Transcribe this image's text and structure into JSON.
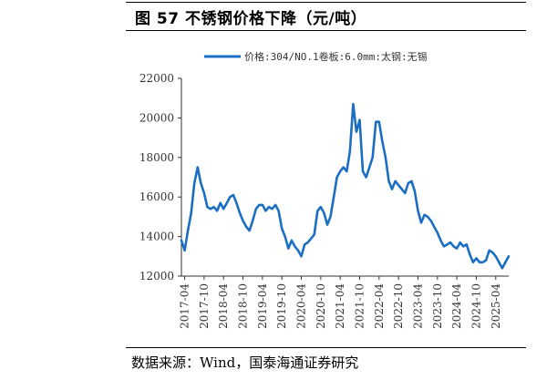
{
  "figure": {
    "title": "图 57  不锈钢价格下降（元/吨）",
    "source": "数据来源：Wind，国泰海通证券研究"
  },
  "chart_data": {
    "type": "line",
    "title": "图 57  不锈钢价格下降（元/吨）",
    "xlabel": "",
    "ylabel": "元/吨",
    "ylim": [
      12000,
      22000
    ],
    "y_ticks": [
      "12000",
      "14000",
      "16000",
      "18000",
      "20000",
      "22000"
    ],
    "x_ticks": [
      "2017-04",
      "2017-10",
      "2018-04",
      "2018-10",
      "2019-04",
      "2019-10",
      "2020-04",
      "2020-10",
      "2021-04",
      "2021-10",
      "2022-04",
      "2022-10",
      "2023-04",
      "2023-10",
      "2024-04",
      "2024-10",
      "2025-04"
    ],
    "x_range": [
      "2017-03",
      "2025-08"
    ],
    "grid": false,
    "legend_position": "top",
    "series": [
      {
        "name": "价格:304/NO.1卷板:6.0mm:太钢:无锡",
        "color": "#1b6ec2",
        "points": [
          [
            "2017-03",
            13800
          ],
          [
            "2017-04",
            13300
          ],
          [
            "2017-05",
            14300
          ],
          [
            "2017-06",
            15200
          ],
          [
            "2017-07",
            16700
          ],
          [
            "2017-08",
            17500
          ],
          [
            "2017-09",
            16700
          ],
          [
            "2017-10",
            16200
          ],
          [
            "2017-11",
            15500
          ],
          [
            "2017-12",
            15400
          ],
          [
            "2018-01",
            15500
          ],
          [
            "2018-02",
            15300
          ],
          [
            "2018-03",
            15700
          ],
          [
            "2018-04",
            15400
          ],
          [
            "2018-05",
            15700
          ],
          [
            "2018-06",
            16000
          ],
          [
            "2018-07",
            16100
          ],
          [
            "2018-08",
            15700
          ],
          [
            "2018-09",
            15200
          ],
          [
            "2018-10",
            14800
          ],
          [
            "2018-11",
            14500
          ],
          [
            "2018-12",
            14300
          ],
          [
            "2019-01",
            14800
          ],
          [
            "2019-02",
            15400
          ],
          [
            "2019-03",
            15600
          ],
          [
            "2019-04",
            15600
          ],
          [
            "2019-05",
            15300
          ],
          [
            "2019-06",
            15500
          ],
          [
            "2019-07",
            15400
          ],
          [
            "2019-08",
            15600
          ],
          [
            "2019-09",
            15300
          ],
          [
            "2019-10",
            14400
          ],
          [
            "2019-11",
            14000
          ],
          [
            "2019-12",
            13400
          ],
          [
            "2020-01",
            13800
          ],
          [
            "2020-02",
            13500
          ],
          [
            "2020-03",
            13300
          ],
          [
            "2020-04",
            13000
          ],
          [
            "2020-05",
            13600
          ],
          [
            "2020-06",
            13700
          ],
          [
            "2020-07",
            13900
          ],
          [
            "2020-08",
            14100
          ],
          [
            "2020-09",
            15300
          ],
          [
            "2020-10",
            15500
          ],
          [
            "2020-11",
            15200
          ],
          [
            "2020-12",
            14600
          ],
          [
            "2021-01",
            15000
          ],
          [
            "2021-02",
            16000
          ],
          [
            "2021-03",
            17000
          ],
          [
            "2021-04",
            17300
          ],
          [
            "2021-05",
            17500
          ],
          [
            "2021-06",
            17300
          ],
          [
            "2021-07",
            18300
          ],
          [
            "2021-08",
            20700
          ],
          [
            "2021-09",
            19300
          ],
          [
            "2021-10",
            19900
          ],
          [
            "2021-11",
            17300
          ],
          [
            "2021-12",
            17000
          ],
          [
            "2022-01",
            17500
          ],
          [
            "2022-02",
            18000
          ],
          [
            "2022-03",
            19800
          ],
          [
            "2022-04",
            19800
          ],
          [
            "2022-05",
            18800
          ],
          [
            "2022-06",
            18000
          ],
          [
            "2022-07",
            16800
          ],
          [
            "2022-08",
            16400
          ],
          [
            "2022-09",
            16800
          ],
          [
            "2022-10",
            16600
          ],
          [
            "2022-11",
            16400
          ],
          [
            "2022-12",
            16200
          ],
          [
            "2023-01",
            16700
          ],
          [
            "2023-02",
            16800
          ],
          [
            "2023-03",
            16300
          ],
          [
            "2023-04",
            15300
          ],
          [
            "2023-05",
            14700
          ],
          [
            "2023-06",
            15100
          ],
          [
            "2023-07",
            15000
          ],
          [
            "2023-08",
            14800
          ],
          [
            "2023-09",
            14500
          ],
          [
            "2023-10",
            14200
          ],
          [
            "2023-11",
            13800
          ],
          [
            "2023-12",
            13500
          ],
          [
            "2024-01",
            13600
          ],
          [
            "2024-02",
            13700
          ],
          [
            "2024-03",
            13500
          ],
          [
            "2024-04",
            13400
          ],
          [
            "2024-05",
            13700
          ],
          [
            "2024-06",
            13500
          ],
          [
            "2024-07",
            13600
          ],
          [
            "2024-08",
            13100
          ],
          [
            "2024-09",
            12700
          ],
          [
            "2024-10",
            12900
          ],
          [
            "2024-11",
            12700
          ],
          [
            "2024-12",
            12700
          ],
          [
            "2025-01",
            12800
          ],
          [
            "2025-02",
            13300
          ],
          [
            "2025-03",
            13200
          ],
          [
            "2025-04",
            13000
          ],
          [
            "2025-05",
            12700
          ],
          [
            "2025-06",
            12400
          ],
          [
            "2025-07",
            12700
          ],
          [
            "2025-08",
            13000
          ]
        ]
      }
    ]
  }
}
